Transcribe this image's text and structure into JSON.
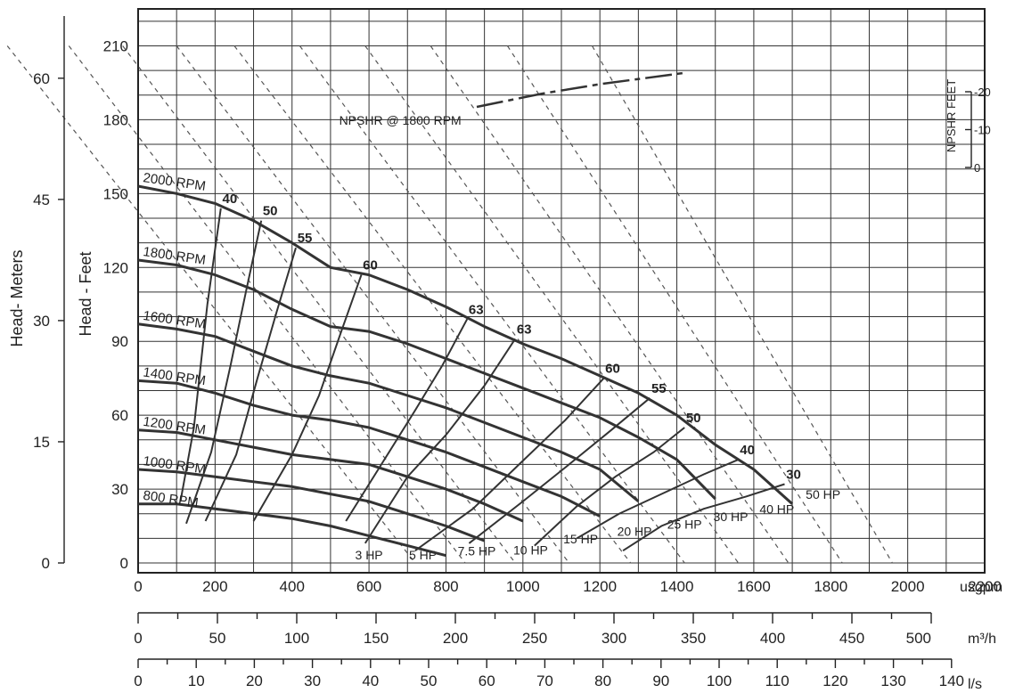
{
  "chart_data": {
    "type": "line",
    "title": "",
    "x": {
      "label": "usgpm",
      "range": [
        0,
        2200
      ],
      "ticks": [
        0,
        200,
        400,
        600,
        800,
        1000,
        1200,
        1400,
        1600,
        1800,
        2000,
        2200
      ],
      "tick_labels": [
        "0",
        "200",
        "400",
        "600",
        "800",
        "1000",
        "1200",
        "1400",
        "1600",
        "1800",
        "2000",
        "2200"
      ]
    },
    "x2": {
      "label": "m³/h",
      "ticks": [
        0,
        50,
        100,
        150,
        200,
        250,
        300,
        350,
        400,
        450,
        500
      ],
      "tick_labels": [
        "0",
        "50",
        "100",
        "150",
        "200",
        "250",
        "300",
        "350",
        "400",
        "450",
        "500"
      ]
    },
    "x3": {
      "label": "l/s",
      "ticks": [
        0,
        10,
        20,
        30,
        40,
        50,
        60,
        70,
        80,
        90,
        100,
        110,
        120,
        130,
        140
      ],
      "tick_labels": [
        "0",
        "10",
        "20",
        "30",
        "40",
        "50",
        "60",
        "70",
        "80",
        "90",
        "100",
        "110",
        "120",
        "130",
        "140"
      ]
    },
    "y": {
      "label": "Head - Feet",
      "range": [
        0,
        225
      ],
      "ticks": [
        0,
        30,
        60,
        90,
        120,
        150,
        180,
        210
      ],
      "tick_labels": [
        "0",
        "30",
        "60",
        "90",
        "120",
        "150",
        "180",
        "210"
      ]
    },
    "y_meters": {
      "label": "Head- Meters",
      "ticks": [
        0,
        15,
        30,
        45,
        60
      ],
      "tick_labels": [
        "0",
        "15",
        "30",
        "45",
        "60"
      ]
    },
    "y_npshr": {
      "label": "NPSHR FEET",
      "ticks": [
        0,
        10,
        20
      ],
      "tick_labels": [
        "0",
        "10",
        "20"
      ]
    },
    "rpm_curves": [
      {
        "name": "2000 RPM",
        "points": [
          [
            0,
            153
          ],
          [
            100,
            150
          ],
          [
            200,
            146
          ],
          [
            300,
            139
          ],
          [
            400,
            130
          ],
          [
            500,
            120
          ],
          [
            600,
            117
          ],
          [
            700,
            111
          ],
          [
            800,
            104
          ],
          [
            900,
            96
          ],
          [
            1000,
            89
          ],
          [
            1100,
            83
          ],
          [
            1200,
            76
          ],
          [
            1300,
            69
          ],
          [
            1400,
            60
          ],
          [
            1500,
            48
          ],
          [
            1600,
            38
          ],
          [
            1700,
            24
          ]
        ]
      },
      {
        "name": "1800 RPM",
        "points": [
          [
            0,
            123
          ],
          [
            100,
            121
          ],
          [
            200,
            117
          ],
          [
            300,
            111
          ],
          [
            400,
            103
          ],
          [
            500,
            96
          ],
          [
            600,
            94
          ],
          [
            700,
            89
          ],
          [
            800,
            83
          ],
          [
            900,
            77
          ],
          [
            1000,
            71
          ],
          [
            1100,
            65
          ],
          [
            1200,
            59
          ],
          [
            1300,
            51
          ],
          [
            1400,
            42
          ],
          [
            1500,
            26
          ]
        ]
      },
      {
        "name": "1600 RPM",
        "points": [
          [
            0,
            97
          ],
          [
            100,
            95
          ],
          [
            200,
            92
          ],
          [
            300,
            86
          ],
          [
            400,
            80
          ],
          [
            500,
            76
          ],
          [
            600,
            73
          ],
          [
            700,
            68
          ],
          [
            800,
            63
          ],
          [
            900,
            57
          ],
          [
            1000,
            51
          ],
          [
            1100,
            45
          ],
          [
            1200,
            38
          ],
          [
            1300,
            25
          ]
        ]
      },
      {
        "name": "1400 RPM",
        "points": [
          [
            0,
            74
          ],
          [
            100,
            73
          ],
          [
            200,
            69
          ],
          [
            300,
            64
          ],
          [
            400,
            60
          ],
          [
            500,
            58
          ],
          [
            600,
            55
          ],
          [
            700,
            50
          ],
          [
            800,
            45
          ],
          [
            900,
            39
          ],
          [
            1000,
            33
          ],
          [
            1100,
            27
          ],
          [
            1200,
            19
          ]
        ]
      },
      {
        "name": "1200 RPM",
        "points": [
          [
            0,
            54
          ],
          [
            100,
            53
          ],
          [
            200,
            50
          ],
          [
            300,
            47
          ],
          [
            400,
            44
          ],
          [
            500,
            42
          ],
          [
            600,
            40
          ],
          [
            700,
            35
          ],
          [
            800,
            30
          ],
          [
            900,
            24
          ],
          [
            1000,
            17
          ]
        ]
      },
      {
        "name": "1000 RPM",
        "points": [
          [
            0,
            38
          ],
          [
            100,
            37
          ],
          [
            200,
            35
          ],
          [
            300,
            33
          ],
          [
            400,
            31
          ],
          [
            500,
            28
          ],
          [
            600,
            25
          ],
          [
            700,
            20
          ],
          [
            800,
            15
          ],
          [
            900,
            9
          ]
        ]
      },
      {
        "name": "800 RPM",
        "points": [
          [
            0,
            24
          ],
          [
            100,
            24
          ],
          [
            200,
            22
          ],
          [
            300,
            20
          ],
          [
            400,
            18
          ],
          [
            500,
            15
          ],
          [
            600,
            11
          ],
          [
            700,
            7
          ],
          [
            800,
            3
          ]
        ]
      }
    ],
    "efficiency_curves": [
      {
        "name": "40",
        "points": [
          [
            215,
            144
          ],
          [
            180,
            105
          ],
          [
            145,
            55
          ],
          [
            110,
            25
          ]
        ]
      },
      {
        "name": "50",
        "points": [
          [
            320,
            139
          ],
          [
            280,
            110
          ],
          [
            240,
            80
          ],
          [
            190,
            45
          ],
          [
            125,
            16
          ]
        ]
      },
      {
        "name": "55",
        "points": [
          [
            410,
            128
          ],
          [
            360,
            102
          ],
          [
            310,
            75
          ],
          [
            255,
            44
          ],
          [
            175,
            17
          ]
        ]
      },
      {
        "name": "60",
        "points": [
          [
            580,
            117
          ],
          [
            530,
            95
          ],
          [
            470,
            68
          ],
          [
            400,
            44
          ],
          [
            300,
            17
          ]
        ]
      },
      {
        "name": "63",
        "points": [
          [
            855,
            99
          ],
          [
            790,
            80
          ],
          [
            720,
            62
          ],
          [
            640,
            42
          ],
          [
            540,
            17
          ]
        ]
      },
      {
        "name": "63",
        "points": [
          [
            980,
            91
          ],
          [
            900,
            72
          ],
          [
            800,
            52
          ],
          [
            700,
            35
          ],
          [
            590,
            8
          ]
        ]
      },
      {
        "name": "60",
        "points": [
          [
            1210,
            75
          ],
          [
            1110,
            58
          ],
          [
            990,
            40
          ],
          [
            870,
            22
          ],
          [
            720,
            5
          ]
        ]
      },
      {
        "name": "55",
        "points": [
          [
            1330,
            67
          ],
          [
            1230,
            54
          ],
          [
            1120,
            40
          ],
          [
            1000,
            25
          ],
          [
            860,
            8
          ]
        ]
      },
      {
        "name": "50",
        "points": [
          [
            1420,
            55
          ],
          [
            1340,
            45
          ],
          [
            1240,
            35
          ],
          [
            1140,
            23
          ],
          [
            1030,
            7
          ]
        ]
      },
      {
        "name": "40",
        "points": [
          [
            1560,
            42
          ],
          [
            1470,
            36
          ],
          [
            1360,
            28
          ],
          [
            1250,
            20
          ],
          [
            1140,
            10
          ]
        ]
      },
      {
        "name": "30",
        "points": [
          [
            1680,
            32
          ],
          [
            1580,
            27
          ],
          [
            1470,
            22
          ],
          [
            1360,
            15
          ],
          [
            1260,
            5
          ]
        ]
      }
    ],
    "hp_lines": [
      {
        "name": "3 HP",
        "points": [
          [
            -340,
            210
          ],
          [
            720,
            0
          ]
        ]
      },
      {
        "name": "5 HP",
        "points": [
          [
            -180,
            210
          ],
          [
            850,
            0
          ]
        ]
      },
      {
        "name": "7.5 HP",
        "points": [
          [
            -40,
            210
          ],
          [
            980,
            0
          ]
        ]
      },
      {
        "name": "10 HP",
        "points": [
          [
            100,
            210
          ],
          [
            1120,
            0
          ]
        ]
      },
      {
        "name": "15 HP",
        "points": [
          [
            250,
            210
          ],
          [
            1280,
            0
          ]
        ]
      },
      {
        "name": "20 HP",
        "points": [
          [
            420,
            210
          ],
          [
            1420,
            0
          ]
        ]
      },
      {
        "name": "25 HP",
        "points": [
          [
            590,
            210
          ],
          [
            1560,
            0
          ]
        ]
      },
      {
        "name": "30 HP",
        "points": [
          [
            760,
            210
          ],
          [
            1690,
            0
          ]
        ]
      },
      {
        "name": "40 HP",
        "points": [
          [
            960,
            210
          ],
          [
            1830,
            0
          ]
        ]
      },
      {
        "name": "50 HP",
        "points": [
          [
            1180,
            210
          ],
          [
            1960,
            0
          ]
        ]
      }
    ],
    "npshr_curve": {
      "name": "NPSHR @ 1800 RPM",
      "points": [
        [
          880,
          16
        ],
        [
          1050,
          19.5
        ],
        [
          1200,
          22
        ],
        [
          1420,
          25
        ]
      ]
    },
    "annotations": [
      "NPSHR @ 1800 RPM"
    ],
    "grid": true
  }
}
